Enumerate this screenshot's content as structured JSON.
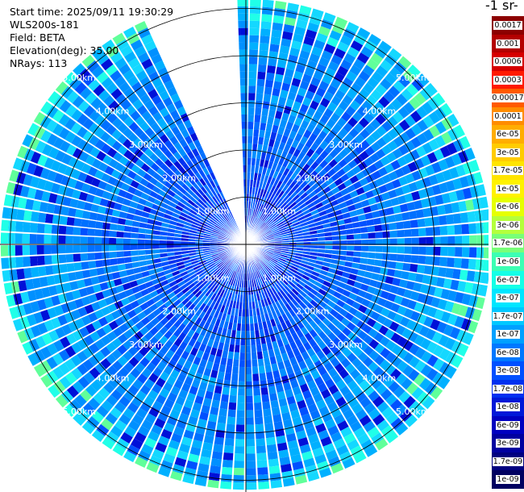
{
  "info": {
    "start_time": "Start time: 2025/09/11 19:30:29",
    "instrument": "WLS200s-181",
    "field": "Field: BETA",
    "elevation": "Elevation(deg): 35.00",
    "nrays": "NRays: 113"
  },
  "colorbar": {
    "title": "-1 sr-",
    "labels": [
      "0.0017",
      "0.001",
      "0.0006",
      "0.0003",
      "0.00017",
      "0.0001",
      "6e-05",
      "3e-05",
      "1.7e-05",
      "1e-05",
      "6e-06",
      "3e-06",
      "1.7e-06",
      "1e-06",
      "6e-07",
      "3e-07",
      "1.7e-07",
      "1e-07",
      "6e-08",
      "3e-08",
      "1.7e-08",
      "1e-08",
      "6e-09",
      "3e-09",
      "1.7e-09",
      "1e-09"
    ],
    "colors": [
      "#8c0000",
      "#b30000",
      "#d60000",
      "#ff1a00",
      "#ff5a00",
      "#ff8c00",
      "#ffad00",
      "#ffcc00",
      "#ffe400",
      "#fff200",
      "#e6ff00",
      "#b4ff3c",
      "#78ff78",
      "#3cffb4",
      "#14ffe6",
      "#00e6ff",
      "#00c8ff",
      "#00a0ff",
      "#0078ff",
      "#0050ff",
      "#0030f0",
      "#0018d8",
      "#0000c0",
      "#0000a0",
      "#000080",
      "#000060"
    ]
  },
  "chart_data": {
    "type": "ppi-polar",
    "field": "BETA",
    "elevation_deg": 35.0,
    "n_rays": 113,
    "range_ring_labels": [
      "1.00km",
      "2.00km",
      "3.00km",
      "4.00km",
      "5.00km"
    ],
    "range_rings_km": [
      1,
      2,
      3,
      4,
      5
    ],
    "max_range_km": 5.2,
    "gap_azimuth_deg": [
      336,
      358
    ],
    "colorbar_scale": "log"
  }
}
